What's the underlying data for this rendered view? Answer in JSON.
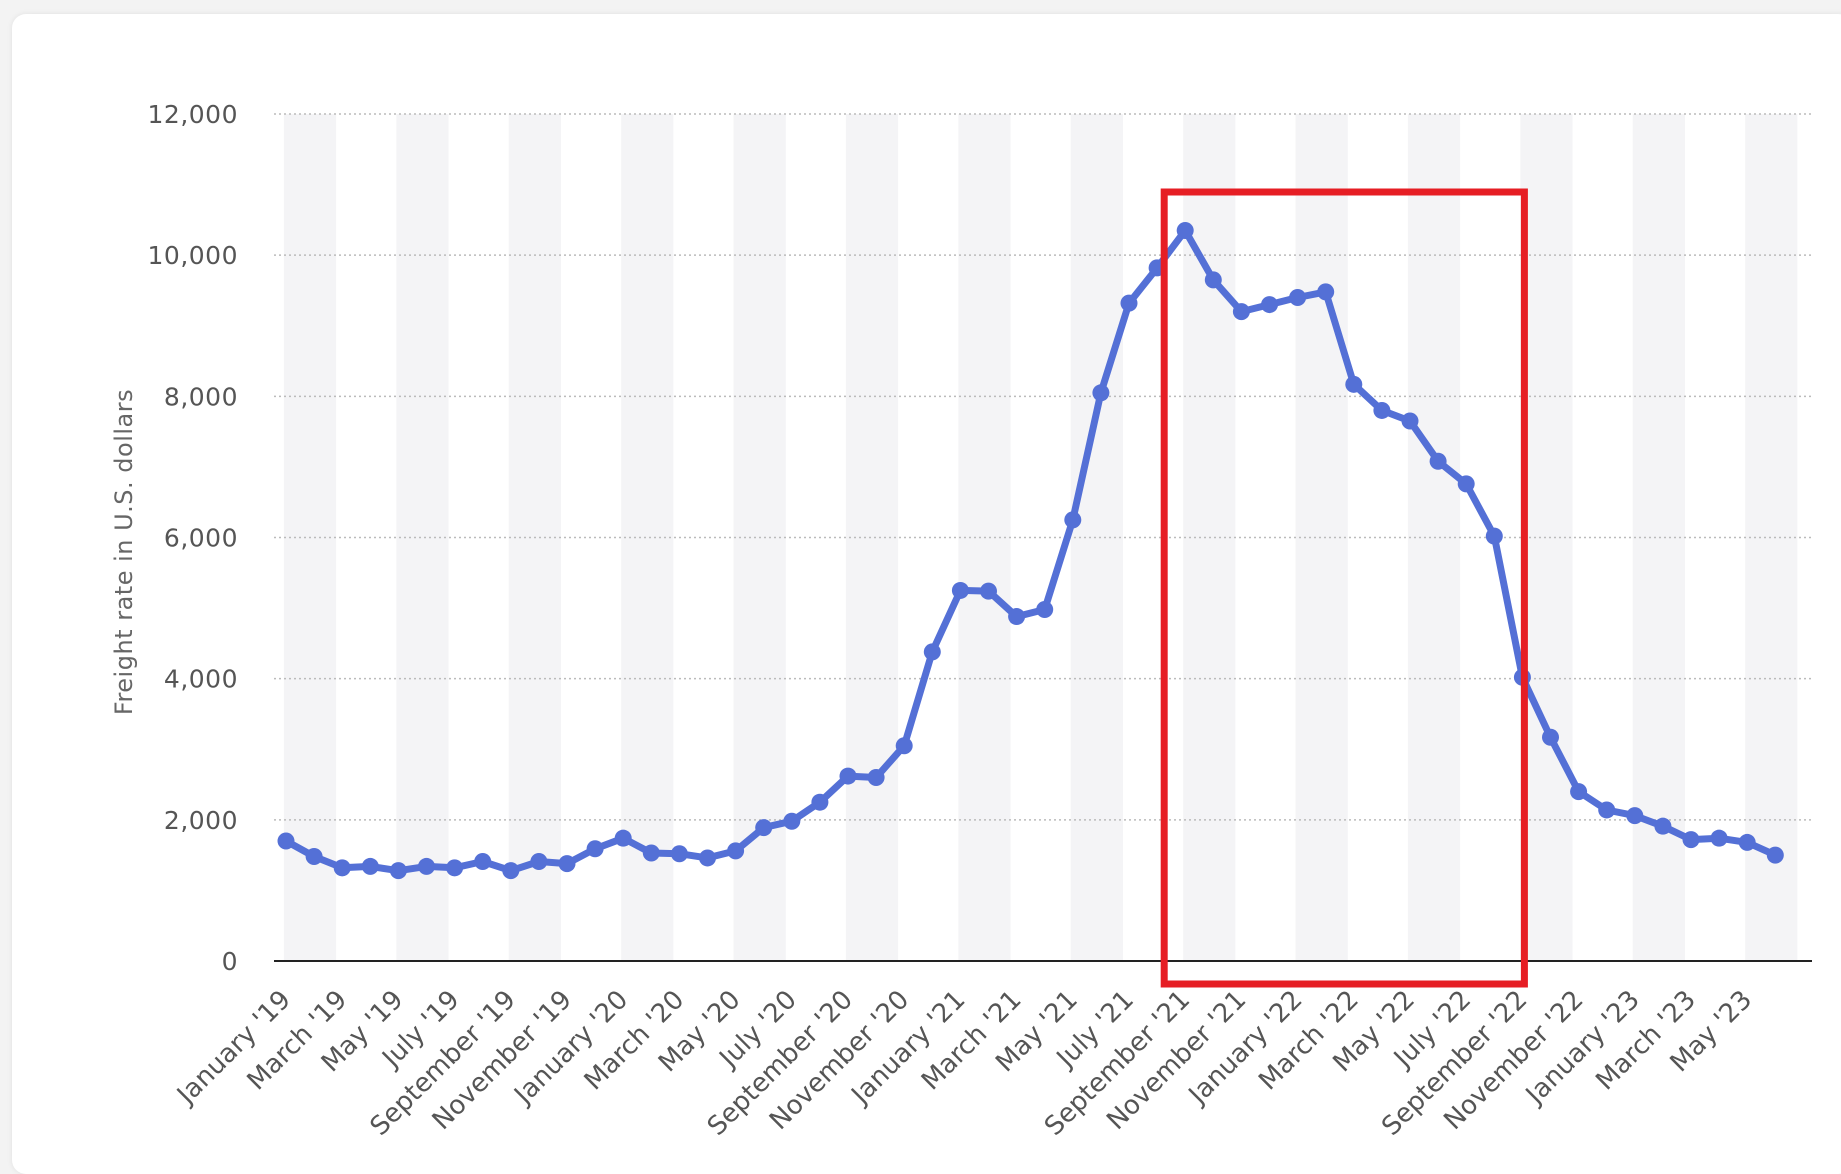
{
  "chart_data": {
    "type": "line",
    "ylabel": "Freight rate in U.S. dollars",
    "ylim": [
      0,
      12000
    ],
    "yticks": [
      0,
      2000,
      4000,
      6000,
      8000,
      10000,
      12000
    ],
    "ytick_labels": [
      "0",
      "2,000",
      "4,000",
      "6,000",
      "8,000",
      "10,000",
      "12,000"
    ],
    "grid": "horizontal dotted",
    "x": [
      "Jan 2019",
      "Feb 2019",
      "Mar 2019",
      "Apr 2019",
      "May 2019",
      "Jun 2019",
      "Jul 2019",
      "Aug 2019",
      "Sep 2019",
      "Oct 2019",
      "Nov 2019",
      "Dec 2019",
      "Jan 2020",
      "Feb 2020",
      "Mar 2020",
      "Apr 2020",
      "May 2020",
      "Jun 2020",
      "Jul 2020",
      "Aug 2020",
      "Sep 2020",
      "Oct 2020",
      "Nov 2020",
      "Dec 2020",
      "Jan 2021",
      "Feb 2021",
      "Mar 2021",
      "Apr 2021",
      "May 2021",
      "Jun 2021",
      "Jul 2021",
      "Aug 2021",
      "Sep 2021",
      "Oct 2021",
      "Nov 2021",
      "Dec 2021",
      "Jan 2022",
      "Feb 2022",
      "Mar 2022",
      "Apr 2022",
      "May 2022",
      "Jun 2022",
      "Jul 2022",
      "Aug 2022",
      "Sep 2022",
      "Oct 2022",
      "Nov 2022",
      "Dec 2022",
      "Jan 2023",
      "Feb 2023",
      "Mar 2023",
      "Apr 2023",
      "May 2023",
      "Jun 2023"
    ],
    "xtick_labels": [
      "January '19",
      "March '19",
      "May '19",
      "July '19",
      "September '19",
      "November '19",
      "January '20",
      "March '20",
      "May '20",
      "July '20",
      "September '20",
      "November '20",
      "January '21",
      "March '21",
      "May '21",
      "July '21",
      "September '21",
      "November '21",
      "January '22",
      "March '22",
      "May '22",
      "July '22",
      "September '22",
      "November '22",
      "January '23",
      "March '23",
      "May '23"
    ],
    "series": [
      {
        "values": [
          1700,
          1480,
          1320,
          1340,
          1280,
          1340,
          1320,
          1410,
          1280,
          1410,
          1380,
          1590,
          1740,
          1530,
          1520,
          1460,
          1560,
          1890,
          1980,
          2250,
          2620,
          2600,
          3050,
          4380,
          5250,
          5240,
          4880,
          4980,
          6250,
          8050,
          9320,
          9820,
          10350,
          9650,
          9200,
          9300,
          9400,
          9480,
          8170,
          7800,
          7650,
          7080,
          6760,
          6020,
          4020,
          3170,
          2400,
          2140,
          2060,
          1910,
          1720,
          1740,
          1680,
          1500
        ]
      }
    ],
    "highlight": {
      "from": "Sep 2021",
      "to": "Sep 2022",
      "color": "#e61e24"
    },
    "colors": {
      "line": "#5470d6",
      "grid": "#bbbbbb",
      "band": "#f4f4f6",
      "axis": "#222222"
    }
  }
}
